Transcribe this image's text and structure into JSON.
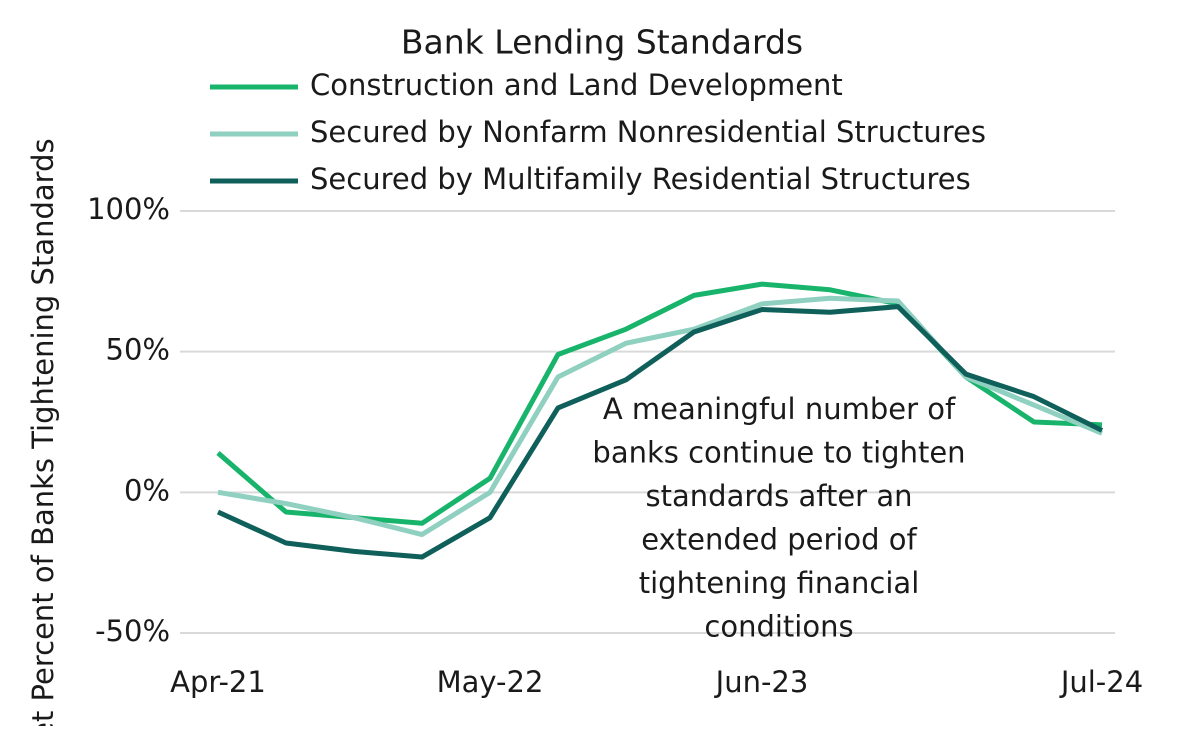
{
  "chart_data": {
    "type": "line",
    "title": "Bank Lending Standards",
    "y_label": "Net Percent of Banks Tightening Standards",
    "annotation": [
      "A meaningful number of",
      "banks continue to tighten",
      "standards after an",
      "extended period of",
      "tightening financial",
      "conditions"
    ],
    "categories": [
      "Apr-21",
      null,
      null,
      null,
      "May-22",
      null,
      null,
      null,
      "Jun-23",
      null,
      null,
      null,
      null,
      "Jul-24"
    ],
    "series": [
      {
        "name": "Construction and Land Development",
        "color": "#18b46c",
        "values": [
          14,
          -7,
          -9,
          -11,
          5,
          49,
          58,
          70,
          74,
          72,
          67,
          41,
          25,
          24
        ]
      },
      {
        "name": "Secured by Nonfarm Nonresidential Structures",
        "color": "#8fd0c0",
        "values": [
          0,
          -4,
          -9,
          -15,
          0,
          41,
          53,
          58,
          67,
          69,
          68,
          41,
          31,
          21
        ]
      },
      {
        "name": "Secured by Multifamily Residential Structures",
        "color": "#0f5f5a",
        "values": [
          -7,
          -18,
          -21,
          -23,
          -9,
          30,
          40,
          57,
          65,
          64,
          66,
          42,
          34,
          22
        ]
      }
    ],
    "ylim": [
      -50,
      100
    ],
    "yticks": [
      {
        "value": -50,
        "label": "-50%"
      },
      {
        "value": 0,
        "label": "0%"
      },
      {
        "value": 50,
        "label": "50%"
      },
      {
        "value": 100,
        "label": "100%"
      }
    ],
    "grid": true,
    "legend": "top"
  }
}
